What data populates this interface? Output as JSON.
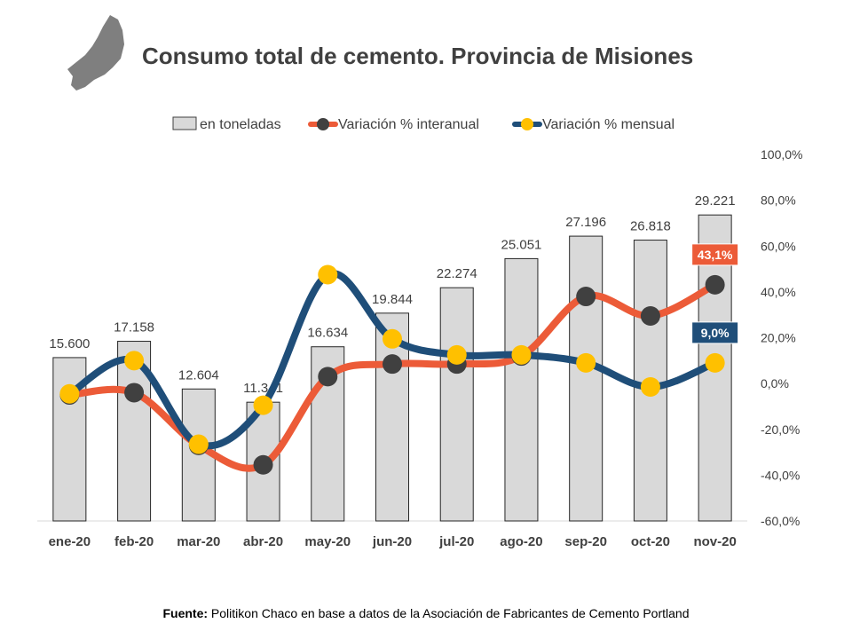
{
  "chart_data": {
    "type": "bar",
    "title": "Consumo total de cemento. Provincia de Misiones",
    "categories": [
      "ene-20",
      "feb-20",
      "mar-20",
      "abr-20",
      "may-20",
      "jun-20",
      "jul-20",
      "ago-20",
      "sep-20",
      "oct-20",
      "nov-20"
    ],
    "series": [
      {
        "name": "en toneladas",
        "kind": "bar",
        "axis": "left",
        "values": [
          15600,
          17158,
          12604,
          11341,
          16634,
          19844,
          22274,
          25051,
          27196,
          26818,
          29221
        ],
        "labels": [
          "15.600",
          "17.158",
          "12.604",
          "11.341",
          "16.634",
          "19.844",
          "22.274",
          "25.051",
          "27.196",
          "26.818",
          "29.221"
        ],
        "color": "#D9D9D9"
      },
      {
        "name": "Variación % interanual",
        "kind": "line",
        "axis": "right",
        "values": [
          -5.0,
          -4.0,
          -27.0,
          -35.5,
          3.0,
          8.5,
          8.5,
          12.0,
          38.0,
          29.5,
          43.1
        ],
        "color": "#EC5B38",
        "marker_color": "#404040",
        "callout": {
          "index": 10,
          "text": "43,1%"
        }
      },
      {
        "name": "Variación % mensual",
        "kind": "line",
        "axis": "right",
        "values": [
          -4.5,
          10.0,
          -26.5,
          -9.5,
          47.5,
          19.5,
          12.5,
          12.5,
          9.0,
          -1.5,
          9.0
        ],
        "color": "#1F4E79",
        "marker_color": "#FFC000",
        "callout": {
          "index": 10,
          "text": "9,0%"
        }
      }
    ],
    "y_left": {
      "min": 0,
      "max": 35000,
      "visible": false
    },
    "y_right": {
      "min": -60,
      "max": 100,
      "step": 20,
      "tick_labels": [
        "-60,0%",
        "-40,0%",
        "-20,0%",
        "0,0%",
        "20,0%",
        "40,0%",
        "60,0%",
        "80,0%",
        "100,0%"
      ]
    },
    "grid": false,
    "legend_position": "top"
  },
  "source": {
    "label": "Fuente:",
    "text": " Politikon Chaco en base a datos de la Asociación de Fabricantes de Cemento Portland"
  },
  "icon": "misiones-province-map-icon"
}
